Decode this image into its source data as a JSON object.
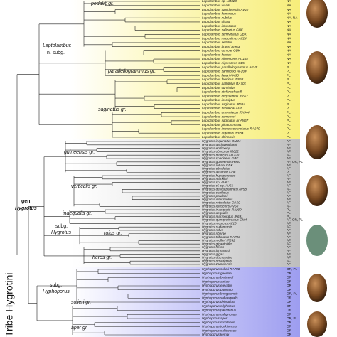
{
  "labels": {
    "pedalis": "pedalis gr.",
    "leptolambus": "Leptolambus",
    "leptolambus_rank": "n. subg.",
    "parallellogrammus": "parallellogrammus gr.",
    "saginatus": "saginatus gr.",
    "guineensis": "guineensis gr.",
    "verticalis": "verticalis gr.",
    "inaequalis": "inaequalis gr.",
    "hygrotus_rank": "subg.",
    "hygrotus_subg": "Hygrotus",
    "rufus": "rufus gr.",
    "heros": "heros gr.",
    "genus_rank": "gen.",
    "genus": "Hygrotus",
    "hyphoporus_rank": "subg.",
    "hyphoporus": "Hyphoporus",
    "solieri": "solieri gr.",
    "aper": "aper gr.",
    "tribe": "Tribe Hygrotini"
  },
  "clades": [
    {
      "species": [
        {
          "name": "Leptolambus sp. AR023",
          "region": "NA"
        },
        {
          "name": "Leptolambus wardi",
          "region": "NA"
        },
        {
          "name": "Leptolambus tumidiventris AV22",
          "region": "NA"
        },
        {
          "name": "Leptolambus femoratus",
          "region": "NA"
        },
        {
          "name": "Leptolambus nubilus",
          "region": "NA, NA"
        },
        {
          "name": "Leptolambus dispar",
          "region": "NA"
        },
        {
          "name": "Leptolambus infuscatus",
          "region": "NA"
        },
        {
          "name": "Leptolambus salinarius GBK",
          "region": "NA"
        },
        {
          "name": "Leptolambus semivittatus GBK",
          "region": "NA"
        },
        {
          "name": "Leptolambus masculinus AV24",
          "region": "NA"
        },
        {
          "name": "Leptolambus sellatus",
          "region": "NA"
        },
        {
          "name": "Leptolambus bruesi AI963",
          "region": "NA"
        },
        {
          "name": "Leptolambus compar GBK",
          "region": "NA"
        },
        {
          "name": "Leptolambus farctus",
          "region": "NA"
        },
        {
          "name": "Leptolambus nigrescens AI1152",
          "region": "NA"
        },
        {
          "name": "Leptolambus nigrescens GBK",
          "region": "NA"
        },
        {
          "name": "Leptolambus parallellogrammus AI145",
          "region": "PL"
        },
        {
          "name": "Leptolambus sanfilippoi AF204",
          "region": "PL"
        },
        {
          "name": "Leptolambus lagari AI490",
          "region": "PL"
        },
        {
          "name": "Leptolambus fennicus IR668",
          "region": "PL"
        },
        {
          "name": "Leptolambus pallidulus RA701",
          "region": "PL"
        },
        {
          "name": "Leptolambus curvistius",
          "region": "PL"
        },
        {
          "name": "Leptolambus stefanschoedli",
          "region": "PL"
        },
        {
          "name": "Leptolambus corpulentus IR667",
          "region": "PL"
        },
        {
          "name": "Leptolambus inscriptus",
          "region": "PL"
        },
        {
          "name": "Leptolambus saginatus IR684",
          "region": "PL"
        },
        {
          "name": "Leptolambus fresnedai AI36",
          "region": "PL"
        },
        {
          "name": "Leptolambus armeniacus RA544",
          "region": "PL"
        },
        {
          "name": "Leptolambus semenovi",
          "region": "PL"
        },
        {
          "name": "Leptolambus saginatus nr AN67",
          "region": "PL"
        },
        {
          "name": "Leptolambus picatus IR481",
          "region": "PL"
        },
        {
          "name": "Leptolambus impressopunctatus RA270",
          "region": "PL"
        },
        {
          "name": "Leptolambus urgensis IR684",
          "region": "PL"
        },
        {
          "name": "Leptolambus chinensis",
          "region": "PL"
        }
      ]
    },
    {
      "species": [
        {
          "name": "Hygrotus inquinatus OM44",
          "region": "AF"
        },
        {
          "name": "Hygrotus gschwendtneri",
          "region": "AF"
        },
        {
          "name": "Hygrotus endroedyi",
          "region": "AF"
        },
        {
          "name": "Hygrotus obscurus IR622",
          "region": "AF"
        },
        {
          "name": "Hygrotus multicus AI1220",
          "region": "AF"
        },
        {
          "name": "Hygrotus spadiceus GBK",
          "region": "AF"
        },
        {
          "name": "Hygrotus guineensis H910",
          "region": "AF, OR, PL"
        },
        {
          "name": "Hygrotus rohani GBK",
          "region": "AF"
        },
        {
          "name": "Hygrotus obsoletus",
          "region": "AF"
        },
        {
          "name": "Hygrotus assimilis GBK",
          "region": "PL"
        },
        {
          "name": "Hygrotus hypoporoides",
          "region": "AF"
        },
        {
          "name": "Hygrotus marklini",
          "region": "AF"
        },
        {
          "name": "Hygrotus sp. AV61",
          "region": "AF"
        },
        {
          "name": "Hygrotus cf. sp. AV61",
          "region": "AF"
        },
        {
          "name": "Hygrotus descarpentriesi AV58",
          "region": "AF"
        },
        {
          "name": "Hygrotus confusus",
          "region": "AF"
        },
        {
          "name": "Hygrotus pauliani",
          "region": "AF"
        },
        {
          "name": "Hygrotus intermedius",
          "region": "AF"
        },
        {
          "name": "Hygrotus reticulatus OA60",
          "region": "AF"
        },
        {
          "name": "Hygrotus lutescens AV60",
          "region": "AF"
        },
        {
          "name": "Hygrotus inaequalis RA209",
          "region": "PL"
        },
        {
          "name": "Hygrotus aequalis",
          "region": "PL"
        },
        {
          "name": "Hygrotus marmoratus IR691",
          "region": "PL"
        },
        {
          "name": "Hygrotus quinquelineatus OM4",
          "region": "AF, OR, PL"
        },
        {
          "name": "Hygrotus musicus AV10",
          "region": "AF"
        },
        {
          "name": "Hygrotus sudanensis",
          "region": "AF"
        },
        {
          "name": "Hygrotus rufus",
          "region": "AF"
        },
        {
          "name": "Hygrotus riberae",
          "region": "AF"
        },
        {
          "name": "Hygrotus tribolatus RA703",
          "region": "AF"
        },
        {
          "name": "Hygrotus mollerl IR242",
          "region": "AF"
        },
        {
          "name": "Hygrotus gigantoides",
          "region": "AF"
        },
        {
          "name": "Hygrotus heros",
          "region": "AF"
        },
        {
          "name": "Hygrotus janssensi",
          "region": "AF"
        },
        {
          "name": "Hygrotus gigas",
          "region": "AF"
        },
        {
          "name": "Hygrotus discrepatus",
          "region": "AF"
        },
        {
          "name": "Hygrotus omanensis",
          "region": "AF"
        },
        {
          "name": "Hygrotus zambiensis",
          "region": "AF"
        }
      ]
    },
    {
      "species": [
        {
          "name": "Hyphoporus solieri RA700",
          "region": "OR, PL"
        },
        {
          "name": "Hyphoporus geertae",
          "region": "OR"
        },
        {
          "name": "Hyphoporus bertrandi",
          "region": "OR"
        },
        {
          "name": "Hyphoporus anitae",
          "region": "OR"
        },
        {
          "name": "Hyphoporus elevatus",
          "region": "OR"
        },
        {
          "name": "Hyphoporus pugnator",
          "region": "OR"
        },
        {
          "name": "Hyphoporus bengalensis",
          "region": "OR, PL"
        },
        {
          "name": "Hyphoporus subaequalis",
          "region": "OR"
        },
        {
          "name": "Hyphoporus dehraduni",
          "region": "OR"
        },
        {
          "name": "Hyphoporus nilghiricus",
          "region": "OR"
        },
        {
          "name": "Hyphoporus pacistanus",
          "region": "OR"
        },
        {
          "name": "Hyphoporus caliginosus",
          "region": "OR"
        },
        {
          "name": "Hyphoporus aper",
          "region": "OR, PL"
        },
        {
          "name": "Hyphoporus montanus",
          "region": "OR"
        },
        {
          "name": "Hyphoporus tonkinensis",
          "region": "OR"
        },
        {
          "name": "Hyphoporus callisposus",
          "region": "OR"
        },
        {
          "name": "Hyphoporus kempi",
          "region": "OR"
        }
      ]
    }
  ]
}
